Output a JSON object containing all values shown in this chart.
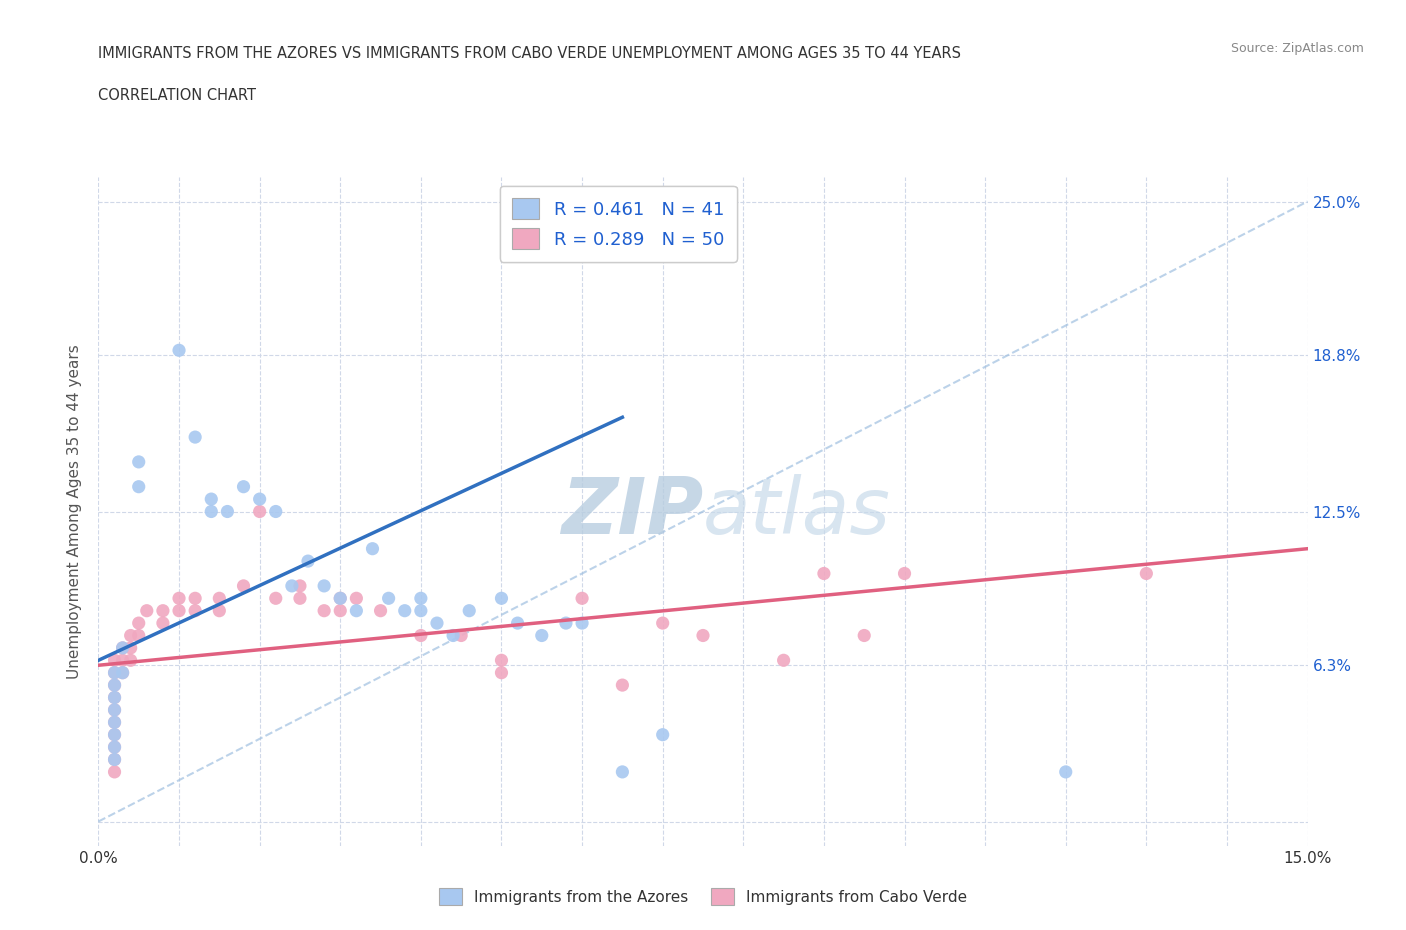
{
  "title_line1": "IMMIGRANTS FROM THE AZORES VS IMMIGRANTS FROM CABO VERDE UNEMPLOYMENT AMONG AGES 35 TO 44 YEARS",
  "title_line2": "CORRELATION CHART",
  "source_text": "Source: ZipAtlas.com",
  "ylabel": "Unemployment Among Ages 35 to 44 years",
  "xlim": [
    0.0,
    0.15
  ],
  "ylim": [
    -0.01,
    0.26
  ],
  "ytick_values": [
    0.0,
    0.063,
    0.125,
    0.188,
    0.25
  ],
  "ytick_labels_right": [
    "",
    "6.3%",
    "12.5%",
    "18.8%",
    "25.0%"
  ],
  "azores_color": "#a8c8f0",
  "caboverde_color": "#f0a8c0",
  "azores_line_color": "#3070c0",
  "caboverde_line_color": "#e06080",
  "dashed_line_color": "#a0c0e0",
  "legend_text_color": "#2060d0",
  "watermark_color": "#ccddef",
  "azores_R": 0.461,
  "azores_N": 41,
  "caboverde_R": 0.289,
  "caboverde_N": 50,
  "azores_trend_x": [
    0.0,
    0.065
  ],
  "azores_trend_y": [
    0.065,
    0.163
  ],
  "caboverde_trend_x": [
    0.0,
    0.15
  ],
  "caboverde_trend_y": [
    0.063,
    0.11
  ],
  "azores_scatter": [
    [
      0.002,
      0.06
    ],
    [
      0.002,
      0.055
    ],
    [
      0.002,
      0.05
    ],
    [
      0.002,
      0.045
    ],
    [
      0.002,
      0.04
    ],
    [
      0.002,
      0.035
    ],
    [
      0.002,
      0.03
    ],
    [
      0.002,
      0.025
    ],
    [
      0.003,
      0.07
    ],
    [
      0.003,
      0.06
    ],
    [
      0.005,
      0.145
    ],
    [
      0.005,
      0.135
    ],
    [
      0.01,
      0.19
    ],
    [
      0.012,
      0.155
    ],
    [
      0.014,
      0.13
    ],
    [
      0.014,
      0.125
    ],
    [
      0.016,
      0.125
    ],
    [
      0.018,
      0.135
    ],
    [
      0.02,
      0.13
    ],
    [
      0.022,
      0.125
    ],
    [
      0.024,
      0.095
    ],
    [
      0.026,
      0.105
    ],
    [
      0.028,
      0.095
    ],
    [
      0.03,
      0.09
    ],
    [
      0.032,
      0.085
    ],
    [
      0.034,
      0.11
    ],
    [
      0.036,
      0.09
    ],
    [
      0.038,
      0.085
    ],
    [
      0.04,
      0.09
    ],
    [
      0.04,
      0.085
    ],
    [
      0.042,
      0.08
    ],
    [
      0.044,
      0.075
    ],
    [
      0.046,
      0.085
    ],
    [
      0.05,
      0.09
    ],
    [
      0.052,
      0.08
    ],
    [
      0.055,
      0.075
    ],
    [
      0.058,
      0.08
    ],
    [
      0.06,
      0.08
    ],
    [
      0.065,
      0.02
    ],
    [
      0.07,
      0.035
    ],
    [
      0.12,
      0.02
    ]
  ],
  "caboverde_scatter": [
    [
      0.002,
      0.065
    ],
    [
      0.002,
      0.06
    ],
    [
      0.002,
      0.055
    ],
    [
      0.002,
      0.05
    ],
    [
      0.002,
      0.045
    ],
    [
      0.002,
      0.04
    ],
    [
      0.002,
      0.035
    ],
    [
      0.002,
      0.03
    ],
    [
      0.002,
      0.025
    ],
    [
      0.002,
      0.02
    ],
    [
      0.003,
      0.07
    ],
    [
      0.003,
      0.065
    ],
    [
      0.003,
      0.06
    ],
    [
      0.004,
      0.075
    ],
    [
      0.004,
      0.07
    ],
    [
      0.004,
      0.065
    ],
    [
      0.005,
      0.08
    ],
    [
      0.005,
      0.075
    ],
    [
      0.006,
      0.085
    ],
    [
      0.008,
      0.085
    ],
    [
      0.008,
      0.08
    ],
    [
      0.01,
      0.09
    ],
    [
      0.01,
      0.085
    ],
    [
      0.012,
      0.09
    ],
    [
      0.012,
      0.085
    ],
    [
      0.015,
      0.09
    ],
    [
      0.015,
      0.085
    ],
    [
      0.018,
      0.095
    ],
    [
      0.02,
      0.125
    ],
    [
      0.022,
      0.09
    ],
    [
      0.025,
      0.095
    ],
    [
      0.025,
      0.09
    ],
    [
      0.028,
      0.085
    ],
    [
      0.03,
      0.09
    ],
    [
      0.03,
      0.085
    ],
    [
      0.032,
      0.09
    ],
    [
      0.035,
      0.085
    ],
    [
      0.04,
      0.075
    ],
    [
      0.045,
      0.075
    ],
    [
      0.05,
      0.065
    ],
    [
      0.05,
      0.06
    ],
    [
      0.06,
      0.09
    ],
    [
      0.065,
      0.055
    ],
    [
      0.07,
      0.08
    ],
    [
      0.075,
      0.075
    ],
    [
      0.085,
      0.065
    ],
    [
      0.09,
      0.1
    ],
    [
      0.095,
      0.075
    ],
    [
      0.1,
      0.1
    ],
    [
      0.13,
      0.1
    ]
  ]
}
